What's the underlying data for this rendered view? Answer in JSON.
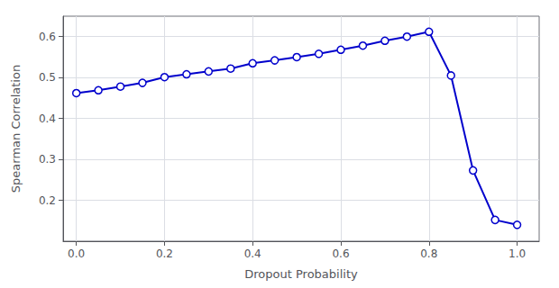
{
  "chart_data": {
    "type": "line",
    "xlabel": "Dropout Probability",
    "ylabel": "Spearman Correlation",
    "x": [
      0.0,
      0.05,
      0.1,
      0.15,
      0.2,
      0.25,
      0.3,
      0.35,
      0.4,
      0.45,
      0.5,
      0.55,
      0.6,
      0.65,
      0.7,
      0.75,
      0.8,
      0.85,
      0.9,
      0.95,
      1.0
    ],
    "values": [
      0.462,
      0.469,
      0.478,
      0.487,
      0.501,
      0.508,
      0.515,
      0.522,
      0.535,
      0.542,
      0.55,
      0.558,
      0.568,
      0.578,
      0.59,
      0.6,
      0.612,
      0.505,
      0.273,
      0.152,
      0.14
    ],
    "color": "#0000cc",
    "marker": "circle",
    "xlim": [
      -0.03,
      1.05
    ],
    "ylim": [
      0.1,
      0.65
    ],
    "xticks": [
      {
        "value": 0.0,
        "label": "0.0"
      },
      {
        "value": 0.2,
        "label": "0.2"
      },
      {
        "value": 0.4,
        "label": "0.4"
      },
      {
        "value": 0.6,
        "label": "0.6"
      },
      {
        "value": 0.8,
        "label": "0.8"
      },
      {
        "value": 1.0,
        "label": "1.0"
      }
    ],
    "yticks": [
      0.2,
      0.3,
      0.4,
      0.5,
      0.6
    ],
    "grid": true
  }
}
